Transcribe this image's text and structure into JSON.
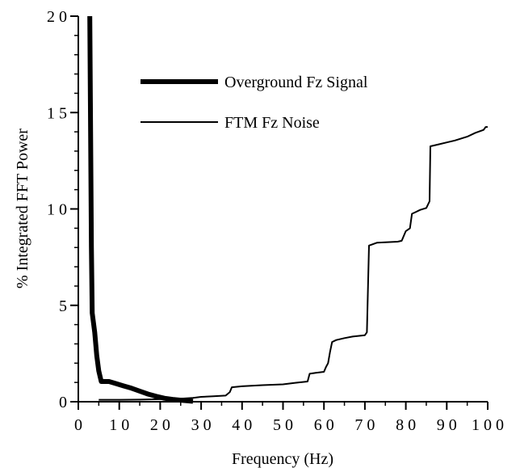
{
  "chart_data": {
    "type": "line",
    "title": "",
    "xlabel": "Frequency (Hz)",
    "ylabel": "% Integrated FFT Power",
    "xlim": [
      0,
      100
    ],
    "ylim": [
      0,
      20
    ],
    "x_ticks": [
      0,
      10,
      20,
      30,
      40,
      50,
      60,
      70,
      80,
      90,
      100
    ],
    "x_tick_labels": [
      "0",
      "1 0",
      "2 0",
      "3 0",
      "4 0",
      "5 0",
      "6 0",
      "7 0",
      "8 0",
      "9 0",
      "1 0 0"
    ],
    "y_ticks": [
      0,
      5,
      10,
      15,
      20
    ],
    "y_tick_labels": [
      "0",
      "5",
      "1 0",
      "1 5",
      "2 0"
    ],
    "grid": false,
    "legend_position": "top-center",
    "series": [
      {
        "name": "Overground Fz Signal",
        "line_weight": "thick",
        "color": "#000000",
        "points": [
          [
            2.8,
            20.0
          ],
          [
            3.0,
            14.0
          ],
          [
            3.2,
            8.0
          ],
          [
            3.4,
            4.6
          ],
          [
            4.0,
            3.6
          ],
          [
            4.5,
            2.4
          ],
          [
            5.0,
            1.6
          ],
          [
            5.6,
            1.05
          ],
          [
            6.5,
            1.05
          ],
          [
            7.5,
            1.05
          ],
          [
            9.0,
            0.95
          ],
          [
            11.0,
            0.82
          ],
          [
            13.0,
            0.7
          ],
          [
            15.0,
            0.55
          ],
          [
            17.0,
            0.4
          ],
          [
            19.0,
            0.28
          ],
          [
            21.0,
            0.18
          ],
          [
            23.0,
            0.12
          ],
          [
            25.0,
            0.08
          ],
          [
            27.0,
            0.04
          ],
          [
            28.0,
            0.02
          ]
        ]
      },
      {
        "name": "FTM Fz Noise",
        "line_weight": "thin",
        "color": "#000000",
        "points": [
          [
            5.0,
            0.1
          ],
          [
            10.0,
            0.1
          ],
          [
            15.0,
            0.11
          ],
          [
            20.0,
            0.13
          ],
          [
            25.0,
            0.16
          ],
          [
            28.0,
            0.2
          ],
          [
            30.0,
            0.25
          ],
          [
            33.0,
            0.28
          ],
          [
            36.0,
            0.32
          ],
          [
            37.0,
            0.5
          ],
          [
            37.5,
            0.75
          ],
          [
            40.0,
            0.8
          ],
          [
            45.0,
            0.86
          ],
          [
            50.0,
            0.9
          ],
          [
            53.0,
            0.98
          ],
          [
            56.0,
            1.05
          ],
          [
            56.5,
            1.45
          ],
          [
            58.0,
            1.5
          ],
          [
            60.0,
            1.55
          ],
          [
            60.5,
            1.8
          ],
          [
            61.0,
            2.0
          ],
          [
            61.5,
            2.6
          ],
          [
            62.0,
            3.1
          ],
          [
            63.0,
            3.2
          ],
          [
            65.0,
            3.3
          ],
          [
            67.0,
            3.38
          ],
          [
            70.0,
            3.45
          ],
          [
            70.5,
            3.6
          ],
          [
            71.0,
            8.1
          ],
          [
            73.0,
            8.25
          ],
          [
            76.0,
            8.28
          ],
          [
            78.0,
            8.3
          ],
          [
            79.0,
            8.35
          ],
          [
            80.0,
            8.85
          ],
          [
            81.0,
            9.0
          ],
          [
            81.5,
            9.75
          ],
          [
            82.5,
            9.85
          ],
          [
            83.5,
            9.95
          ],
          [
            85.0,
            10.05
          ],
          [
            85.8,
            10.4
          ],
          [
            86.0,
            13.25
          ],
          [
            88.0,
            13.35
          ],
          [
            90.0,
            13.45
          ],
          [
            92.0,
            13.55
          ],
          [
            95.0,
            13.75
          ],
          [
            97.0,
            13.95
          ],
          [
            99.0,
            14.1
          ],
          [
            99.5,
            14.25
          ],
          [
            100.0,
            14.25
          ]
        ]
      }
    ]
  }
}
